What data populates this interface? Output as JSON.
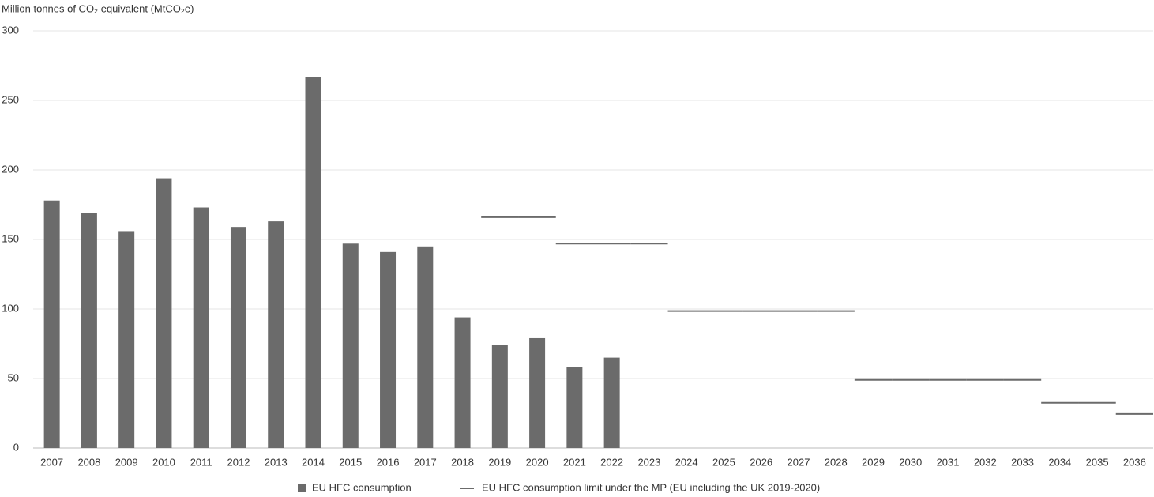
{
  "chart_data": {
    "type": "bar",
    "y_label": "Million tonnes of CO₂ equivalent (MtCO₂e)",
    "categories": [
      "2007",
      "2008",
      "2009",
      "2010",
      "2011",
      "2012",
      "2013",
      "2014",
      "2015",
      "2016",
      "2017",
      "2018",
      "2019",
      "2020",
      "2021",
      "2022",
      "2023",
      "2024",
      "2025",
      "2026",
      "2027",
      "2028",
      "2029",
      "2030",
      "2031",
      "2032",
      "2033",
      "2034",
      "2035",
      "2036"
    ],
    "series": [
      {
        "name": "EU HFC consumption",
        "type": "bar",
        "color": "#6b6b6b",
        "values": [
          178,
          169,
          156,
          194,
          173,
          159,
          163,
          267,
          147,
          141,
          145,
          94,
          74,
          79,
          58,
          65,
          null,
          null,
          null,
          null,
          null,
          null,
          null,
          null,
          null,
          null,
          null,
          null,
          null,
          null
        ]
      },
      {
        "name": "EU HFC consumption limit under the MP (EU including the UK 2019-2020)",
        "type": "step",
        "color": "#6b6b6b",
        "values": [
          null,
          null,
          null,
          null,
          null,
          null,
          null,
          null,
          null,
          null,
          null,
          null,
          166,
          166,
          147,
          147,
          147,
          98.5,
          98.5,
          98.5,
          98.5,
          98.5,
          49,
          49,
          49,
          49,
          49,
          32.5,
          32.5,
          24.5
        ]
      }
    ],
    "ylim": [
      0,
      300
    ],
    "yticks": [
      0,
      50,
      100,
      150,
      200,
      250,
      300
    ],
    "grid": true
  }
}
